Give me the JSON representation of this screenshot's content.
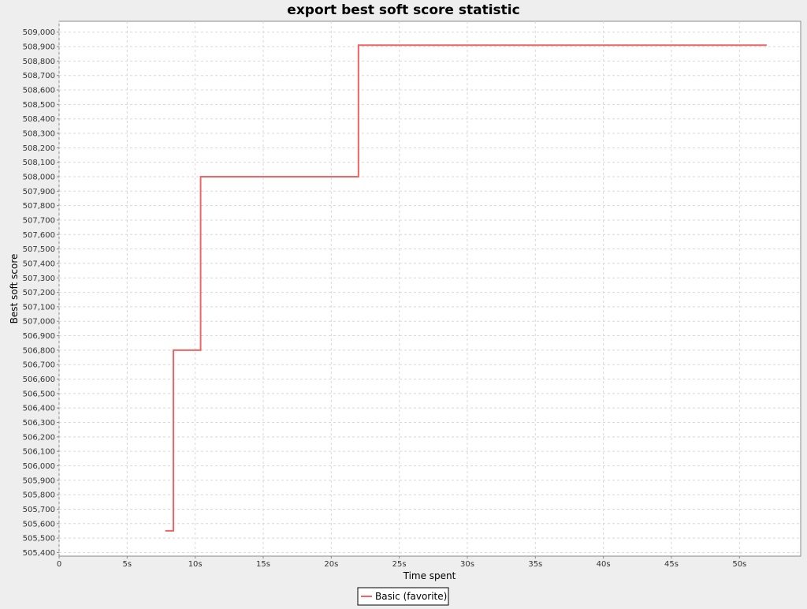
{
  "chart_data": {
    "type": "line",
    "step": true,
    "title": "export best soft score statistic",
    "xlabel": "Time spent",
    "ylabel": "Best soft score",
    "xlim": [
      0,
      54.5
    ],
    "ylim": [
      505375,
      509075
    ],
    "x_ticks": [
      0,
      5,
      10,
      15,
      20,
      25,
      30,
      35,
      40,
      45,
      50
    ],
    "x_tick_labels": [
      "0",
      "5s",
      "10s",
      "15s",
      "20s",
      "25s",
      "30s",
      "35s",
      "40s",
      "45s",
      "50s"
    ],
    "y_ticks": [
      505400,
      505500,
      505600,
      505700,
      505800,
      505900,
      506000,
      506100,
      506200,
      506300,
      506400,
      506500,
      506600,
      506700,
      506800,
      506900,
      507000,
      507100,
      507200,
      507300,
      507400,
      507500,
      507600,
      507700,
      507800,
      507900,
      508000,
      508100,
      508200,
      508300,
      508400,
      508500,
      508600,
      508700,
      508800,
      508900,
      509000
    ],
    "y_tick_labels": [
      "505,400",
      "505,500",
      "505,600",
      "505,700",
      "505,800",
      "505,900",
      "506,000",
      "506,100",
      "506,200",
      "506,300",
      "506,400",
      "506,500",
      "506,600",
      "506,700",
      "506,800",
      "506,900",
      "507,000",
      "507,100",
      "507,200",
      "507,300",
      "507,400",
      "507,500",
      "507,600",
      "507,700",
      "507,800",
      "507,900",
      "508,000",
      "508,100",
      "508,200",
      "508,300",
      "508,400",
      "508,500",
      "508,600",
      "508,700",
      "508,800",
      "508,900",
      "509,000"
    ],
    "grid": true,
    "legend_position": "bottom",
    "series": [
      {
        "name": "Basic (favorite)",
        "color": "#f06464",
        "x": [
          7.8,
          8.4,
          10.4,
          22.0,
          52.0
        ],
        "y": [
          505550,
          506800,
          508000,
          508910,
          508910
        ]
      }
    ]
  }
}
